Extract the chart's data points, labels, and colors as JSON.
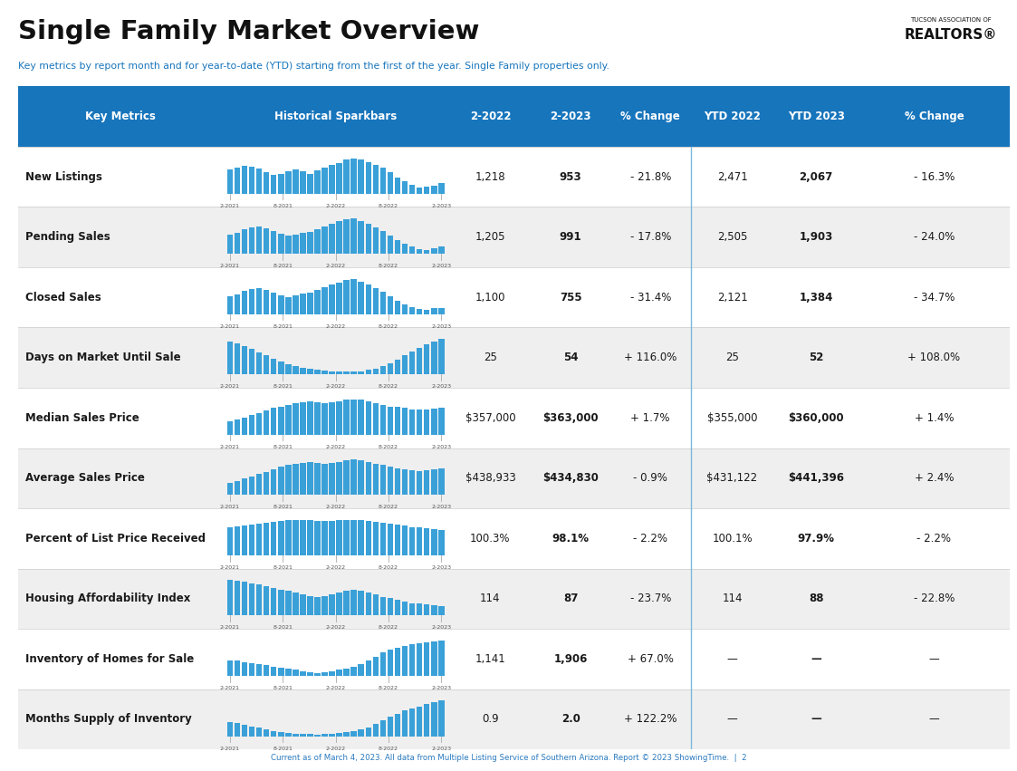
{
  "title": "Single Family Market Overview",
  "subtitle": "Key metrics by report month and for year-to-date (YTD) starting from the first of the year. Single Family properties only.",
  "footer": "Current as of March 4, 2023. All data from Multiple Listing Service of Southern Arizona. Report © 2023 ShowingTime.  |  2",
  "header_bg": "#1775bc",
  "row_colors": [
    "#ffffff",
    "#efefef"
  ],
  "col_headers": [
    "Key Metrics",
    "Historical Sparkbars",
    "2-2022",
    "2-2023",
    "% Change",
    "YTD 2022",
    "YTD 2023",
    "% Change"
  ],
  "rows": [
    {
      "metric": "New Listings",
      "val_2022": "1,218",
      "val_2023": "953",
      "pct_change": "- 21.8%",
      "ytd_2022": "2,471",
      "ytd_2023": "2,067",
      "ytd_pct": "- 16.3%",
      "sparkbar_data": [
        62,
        68,
        72,
        70,
        65,
        55,
        48,
        52,
        58,
        62,
        58,
        52,
        60,
        68,
        75,
        80,
        88,
        92,
        88,
        82,
        75,
        68,
        55,
        42,
        32,
        22,
        16,
        18,
        20,
        28
      ]
    },
    {
      "metric": "Pending Sales",
      "val_2022": "1,205",
      "val_2023": "991",
      "pct_change": "- 17.8%",
      "ytd_2022": "2,505",
      "ytd_2023": "1,903",
      "ytd_pct": "- 24.0%",
      "sparkbar_data": [
        55,
        60,
        70,
        75,
        78,
        72,
        65,
        58,
        52,
        55,
        60,
        62,
        70,
        78,
        85,
        92,
        98,
        100,
        92,
        85,
        75,
        65,
        52,
        38,
        28,
        20,
        14,
        12,
        16,
        22
      ]
    },
    {
      "metric": "Closed Sales",
      "val_2022": "1,100",
      "val_2023": "755",
      "pct_change": "- 31.4%",
      "ytd_2022": "2,121",
      "ytd_2023": "1,384",
      "ytd_pct": "- 34.7%",
      "sparkbar_data": [
        50,
        55,
        65,
        70,
        72,
        68,
        60,
        52,
        48,
        52,
        58,
        60,
        68,
        75,
        82,
        88,
        95,
        98,
        90,
        82,
        72,
        62,
        50,
        38,
        28,
        20,
        14,
        12,
        16,
        18
      ]
    },
    {
      "metric": "Days on Market Until Sale",
      "val_2022": "25",
      "val_2023": "54",
      "pct_change": "+ 116.0%",
      "ytd_2022": "25",
      "ytd_2023": "52",
      "ytd_pct": "+ 108.0%",
      "sparkbar_data": [
        88,
        82,
        75,
        68,
        60,
        52,
        42,
        35,
        28,
        22,
        18,
        15,
        12,
        10,
        9,
        8,
        8,
        8,
        9,
        12,
        16,
        22,
        30,
        40,
        52,
        62,
        72,
        80,
        88,
        95
      ]
    },
    {
      "metric": "Median Sales Price",
      "val_2022": "$357,000",
      "val_2023": "$363,000",
      "pct_change": "+ 1.7%",
      "ytd_2022": "$355,000",
      "ytd_2023": "$360,000",
      "ytd_pct": "+ 1.4%",
      "sparkbar_data": [
        38,
        42,
        48,
        55,
        62,
        68,
        75,
        80,
        85,
        88,
        92,
        95,
        92,
        90,
        92,
        95,
        98,
        100,
        98,
        95,
        90,
        85,
        80,
        78,
        75,
        72,
        70,
        72,
        74,
        76
      ]
    },
    {
      "metric": "Average Sales Price",
      "val_2022": "$438,933",
      "val_2023": "$434,830",
      "pct_change": "- 0.9%",
      "ytd_2022": "$431,122",
      "ytd_2023": "$441,396",
      "ytd_pct": "+ 2.4%",
      "sparkbar_data": [
        35,
        40,
        46,
        52,
        60,
        66,
        73,
        79,
        84,
        88,
        91,
        94,
        91,
        89,
        91,
        94,
        97,
        100,
        97,
        94,
        89,
        84,
        79,
        76,
        73,
        70,
        68,
        70,
        72,
        74
      ]
    },
    {
      "metric": "Percent of List Price Received",
      "val_2022": "100.3%",
      "val_2023": "98.1%",
      "pct_change": "- 2.2%",
      "ytd_2022": "100.1%",
      "ytd_2023": "97.9%",
      "ytd_pct": "- 2.2%",
      "sparkbar_data": [
        80,
        82,
        85,
        87,
        90,
        92,
        95,
        97,
        99,
        100,
        100,
        100,
        98,
        96,
        98,
        100,
        100,
        100,
        100,
        98,
        95,
        92,
        89,
        86,
        83,
        80,
        78,
        76,
        74,
        72
      ]
    },
    {
      "metric": "Housing Affordability Index",
      "val_2022": "114",
      "val_2023": "87",
      "pct_change": "- 23.7%",
      "ytd_2022": "114",
      "ytd_2023": "88",
      "ytd_pct": "- 22.8%",
      "sparkbar_data": [
        90,
        88,
        85,
        82,
        78,
        74,
        70,
        66,
        62,
        58,
        54,
        50,
        48,
        50,
        54,
        58,
        62,
        66,
        62,
        58,
        54,
        48,
        44,
        40,
        36,
        32,
        30,
        28,
        26,
        24
      ]
    },
    {
      "metric": "Inventory of Homes for Sale",
      "val_2022": "1,141",
      "val_2023": "1,906",
      "pct_change": "+ 67.0%",
      "ytd_2022": "—",
      "ytd_2023": "—",
      "ytd_pct": "—",
      "sparkbar_data": [
        42,
        40,
        37,
        34,
        31,
        28,
        25,
        22,
        19,
        16,
        13,
        10,
        8,
        10,
        13,
        16,
        20,
        25,
        32,
        42,
        52,
        62,
        70,
        76,
        80,
        84,
        87,
        89,
        92,
        95
      ]
    },
    {
      "metric": "Months Supply of Inventory",
      "val_2022": "0.9",
      "val_2023": "2.0",
      "pct_change": "+ 122.2%",
      "ytd_2022": "—",
      "ytd_2023": "—",
      "ytd_pct": "—",
      "sparkbar_data": [
        38,
        35,
        30,
        26,
        22,
        18,
        14,
        11,
        9,
        7,
        6,
        5,
        4,
        5,
        7,
        9,
        11,
        14,
        18,
        24,
        32,
        42,
        52,
        60,
        68,
        75,
        80,
        85,
        90,
        95
      ]
    }
  ],
  "sparkbar_x_labels": [
    "2-2021",
    "8-2021",
    "2-2022",
    "8-2022",
    "2-2023"
  ],
  "blue_bar_color": "#3aa0d8",
  "tick_color": "#aaaaaa",
  "dark_blue": "#1775bc",
  "divider_blue": "#7ab8e0",
  "text_dark": "#1a1a1a",
  "footer_color": "#2a7abf"
}
